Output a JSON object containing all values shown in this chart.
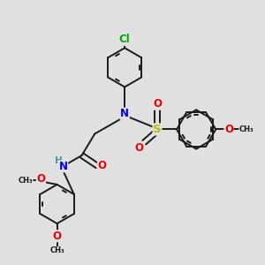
{
  "bg_color": "#e0e0e0",
  "bond_color": "#1a1a1a",
  "bond_width": 1.4,
  "N_color": "#0000ee",
  "O_color": "#ee0000",
  "S_color": "#bbbb00",
  "Cl_color": "#00aa00",
  "H_color": "#3a9a9a",
  "font_size": 8.5,
  "fig_size": [
    3.0,
    3.0
  ],
  "dpi": 100,
  "xlim": [
    0,
    10
  ],
  "ylim": [
    0,
    10
  ]
}
